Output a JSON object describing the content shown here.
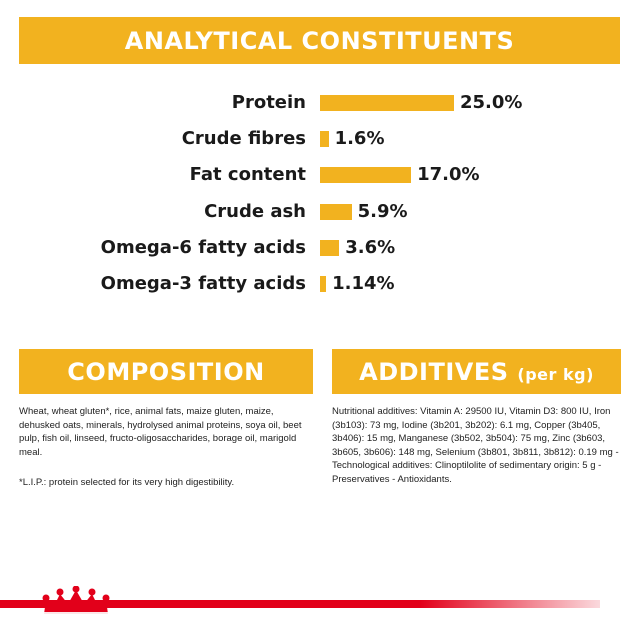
{
  "analytical": {
    "title": "ANALYTICAL CONSTITUENTS",
    "accent": "#f2b21f",
    "rows": [
      {
        "label": "Protein",
        "value": "25.0%",
        "amount": 25.0
      },
      {
        "label": "Crude fibres",
        "value": "1.6%",
        "amount": 1.6
      },
      {
        "label": "Fat content",
        "value": "17.0%",
        "amount": 17.0
      },
      {
        "label": "Crude ash",
        "value": "5.9%",
        "amount": 5.9
      },
      {
        "label": "Omega-6 fatty acids",
        "value": "3.6%",
        "amount": 3.6
      },
      {
        "label": "Omega-3 fatty acids",
        "value": "1.14%",
        "amount": 1.14
      }
    ]
  },
  "composition": {
    "title": "COMPOSITION",
    "text": "Wheat, wheat gluten*, rice, animal fats, maize gluten, maize, dehusked oats, minerals, hydrolysed animal proteins, soya oil, beet pulp, fish oil, linseed, fructo-oligosaccharides, borage oil, marigold meal.",
    "note": "*L.I.P.: protein selected for its very high digestibility."
  },
  "additives": {
    "title": "ADDITIVES",
    "title_suffix": "(per kg)",
    "text": "Nutritional additives: Vitamin A: 29500 IU, Vitamin D3: 800 IU, Iron (3b103): 73 mg, Iodine (3b201, 3b202): 6.1 mg, Copper (3b405, 3b406): 15 mg, Manganese (3b502, 3b504): 75 mg, Zinc (3b603, 3b605, 3b606): 148 mg, Selenium (3b801, 3b811, 3b812): 0.19 mg - Technological additives: Clinoptilolite of sedimentary origin: 5 g - Preservatives - Antioxidants."
  },
  "footer": {
    "icon": "crown-icon",
    "brand_color": "#e2001a"
  }
}
